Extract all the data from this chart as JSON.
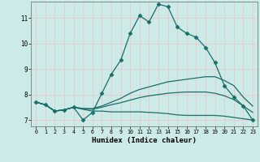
{
  "xlabel": "Humidex (Indice chaleur)",
  "background_color": "#cceae8",
  "grid_color": "#e8c8c8",
  "line_color": "#1a6e6a",
  "xlim": [
    -0.5,
    23.5
  ],
  "ylim": [
    6.75,
    11.65
  ],
  "xticks": [
    0,
    1,
    2,
    3,
    4,
    5,
    6,
    7,
    8,
    9,
    10,
    11,
    12,
    13,
    14,
    15,
    16,
    17,
    18,
    19,
    20,
    21,
    22,
    23
  ],
  "yticks": [
    7,
    8,
    9,
    10,
    11
  ],
  "lines": [
    {
      "x": [
        0,
        1,
        2,
        3,
        4,
        5,
        6,
        7,
        8,
        9,
        10,
        11,
        12,
        13,
        14,
        15,
        16,
        17,
        18,
        19,
        20,
        21,
        22,
        23
      ],
      "y": [
        7.7,
        7.6,
        7.35,
        7.4,
        7.5,
        7.0,
        7.3,
        8.05,
        8.8,
        9.35,
        10.4,
        11.1,
        10.85,
        11.55,
        11.45,
        10.65,
        10.4,
        10.25,
        9.85,
        9.25,
        8.35,
        7.9,
        7.55,
        7.0
      ],
      "marker": "D",
      "markersize": 2.5,
      "linewidth": 0.9
    },
    {
      "x": [
        0,
        1,
        2,
        3,
        4,
        5,
        6,
        7,
        8,
        9,
        10,
        11,
        12,
        13,
        14,
        15,
        16,
        17,
        18,
        19,
        20,
        21,
        22,
        23
      ],
      "y": [
        7.7,
        7.6,
        7.35,
        7.4,
        7.5,
        7.45,
        7.45,
        7.55,
        7.7,
        7.85,
        8.05,
        8.2,
        8.3,
        8.4,
        8.5,
        8.55,
        8.6,
        8.65,
        8.7,
        8.7,
        8.55,
        8.35,
        7.9,
        7.55
      ],
      "marker": null,
      "markersize": 0,
      "linewidth": 0.9
    },
    {
      "x": [
        0,
        1,
        2,
        3,
        4,
        5,
        6,
        7,
        8,
        9,
        10,
        11,
        12,
        13,
        14,
        15,
        16,
        17,
        18,
        19,
        20,
        21,
        22,
        23
      ],
      "y": [
        7.7,
        7.6,
        7.35,
        7.4,
        7.5,
        7.45,
        7.42,
        7.5,
        7.6,
        7.68,
        7.78,
        7.88,
        7.95,
        8.0,
        8.05,
        8.08,
        8.1,
        8.1,
        8.1,
        8.05,
        7.95,
        7.8,
        7.55,
        7.3
      ],
      "marker": null,
      "markersize": 0,
      "linewidth": 0.9
    },
    {
      "x": [
        0,
        1,
        2,
        3,
        4,
        5,
        6,
        7,
        8,
        9,
        10,
        11,
        12,
        13,
        14,
        15,
        16,
        17,
        18,
        19,
        20,
        21,
        22,
        23
      ],
      "y": [
        7.7,
        7.6,
        7.35,
        7.4,
        7.5,
        7.42,
        7.35,
        7.35,
        7.32,
        7.32,
        7.32,
        7.32,
        7.3,
        7.28,
        7.25,
        7.2,
        7.18,
        7.18,
        7.18,
        7.18,
        7.15,
        7.1,
        7.05,
        7.0
      ],
      "marker": null,
      "markersize": 0,
      "linewidth": 0.9
    }
  ]
}
